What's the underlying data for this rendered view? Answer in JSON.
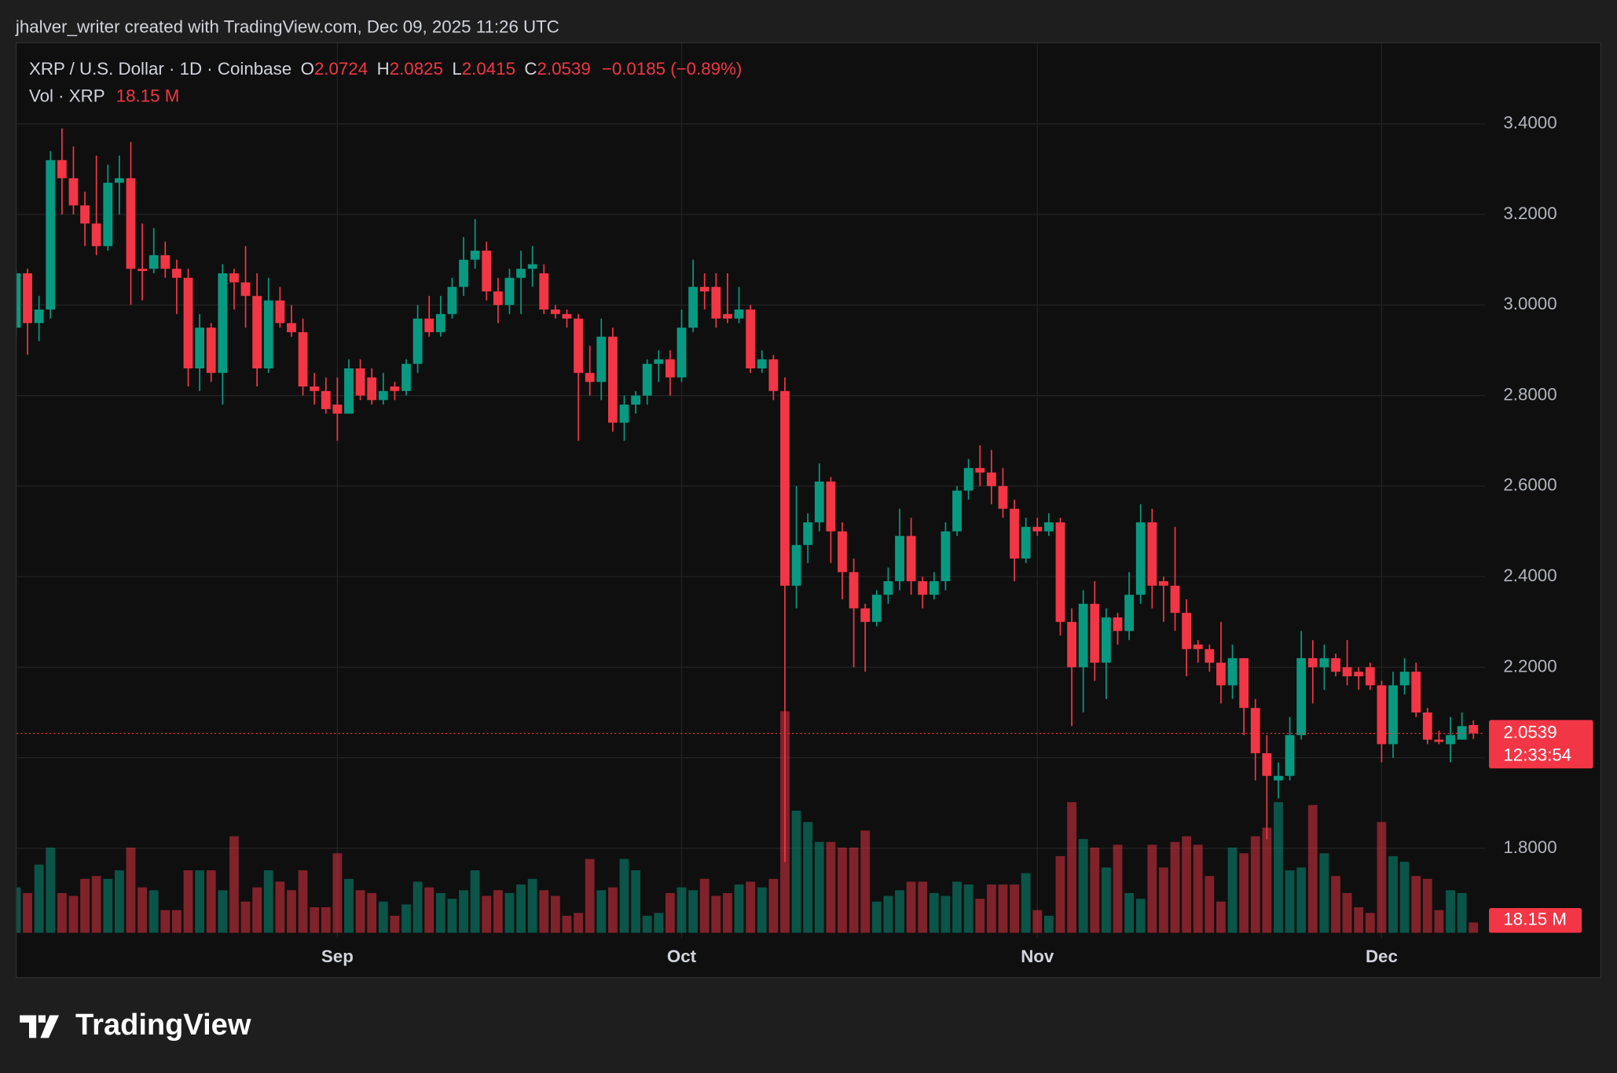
{
  "attribution": "jhalver_writer created with TradingView.com, Dec 09, 2025 11:26 UTC",
  "footer": {
    "logo": "TradingView"
  },
  "chart_data": {
    "type": "candlestick",
    "legend": {
      "symbol": "XRP / U.S. Dollar · 1D · Coinbase",
      "open_label": "O",
      "high_label": "H",
      "low_label": "L",
      "close_label": "C",
      "change": "−0.0185 (−0.89%)",
      "volume_name": "Vol · XRP"
    },
    "countdown": "12:33:54",
    "volume_last_label": "18.15 M",
    "up_color": "#089981",
    "down_color": "#f23645",
    "ylim": [
      1.602,
      3.578
    ],
    "yticks": [
      {
        "value": 1.8,
        "label": "1.8000"
      },
      {
        "value": 2.0,
        "label": "2.0000"
      },
      {
        "value": 2.2,
        "label": "2.2000"
      },
      {
        "value": 2.4,
        "label": "2.4000"
      },
      {
        "value": 2.6,
        "label": "2.6000"
      },
      {
        "value": 2.8,
        "label": "2.8000"
      },
      {
        "value": 3.0,
        "label": "3.0000"
      },
      {
        "value": 3.2,
        "label": "3.2000"
      },
      {
        "value": 3.4,
        "label": "3.4000"
      }
    ],
    "grid": true,
    "categories": [
      null,
      null,
      null,
      null,
      null,
      null,
      null,
      null,
      null,
      null,
      null,
      null,
      null,
      null,
      null,
      null,
      null,
      null,
      null,
      null,
      null,
      null,
      null,
      null,
      null,
      null,
      null,
      null,
      "Sep",
      null,
      null,
      null,
      null,
      null,
      null,
      null,
      null,
      null,
      null,
      null,
      null,
      null,
      null,
      null,
      null,
      null,
      null,
      null,
      null,
      null,
      null,
      null,
      null,
      null,
      null,
      null,
      null,
      null,
      "Oct",
      null,
      null,
      null,
      null,
      null,
      null,
      null,
      null,
      null,
      null,
      null,
      null,
      null,
      null,
      null,
      null,
      null,
      null,
      null,
      null,
      null,
      null,
      null,
      null,
      null,
      null,
      null,
      null,
      null,
      null,
      "Nov",
      null,
      null,
      null,
      null,
      null,
      null,
      null,
      null,
      null,
      null,
      null,
      null,
      null,
      null,
      null,
      null,
      null,
      null,
      null,
      null,
      null,
      null,
      null,
      null,
      null,
      null,
      null,
      null,
      null,
      "Dec",
      null,
      null,
      null,
      null,
      null,
      null,
      null,
      null
    ],
    "open": [
      2.95,
      3.07,
      2.96,
      2.99,
      3.32,
      3.28,
      3.22,
      3.18,
      3.13,
      3.27,
      3.28,
      3.08,
      3.08,
      3.11,
      3.08,
      3.06,
      2.86,
      2.95,
      2.85,
      3.07,
      3.05,
      3.02,
      2.86,
      3.01,
      2.96,
      2.94,
      2.82,
      2.81,
      2.78,
      2.76,
      2.86,
      2.84,
      2.79,
      2.82,
      2.81,
      2.87,
      2.97,
      2.94,
      2.98,
      3.04,
      3.1,
      3.12,
      3.03,
      3.0,
      3.06,
      3.08,
      3.07,
      2.99,
      2.98,
      2.97,
      2.85,
      2.83,
      2.93,
      2.74,
      2.78,
      2.8,
      2.87,
      2.88,
      2.84,
      2.95,
      3.04,
      3.04,
      2.98,
      2.97,
      2.99,
      2.86,
      2.88,
      2.81,
      2.38,
      2.47,
      2.52,
      2.61,
      2.5,
      2.41,
      2.33,
      2.3,
      2.36,
      2.39,
      2.49,
      2.39,
      2.36,
      2.39,
      2.5,
      2.59,
      2.64,
      2.63,
      2.6,
      2.55,
      2.44,
      2.51,
      2.5,
      2.52,
      2.3,
      2.2,
      2.34,
      2.21,
      2.31,
      2.28,
      2.36,
      2.52,
      2.39,
      2.38,
      2.32,
      2.25,
      2.24,
      2.21,
      2.16,
      2.22,
      2.11,
      2.01,
      1.95,
      1.96,
      2.05,
      2.22,
      2.2,
      2.22,
      2.2,
      2.19,
      2.2,
      2.16,
      2.03,
      2.16,
      2.19,
      2.1,
      2.04,
      2.03,
      2.04,
      2.0724
    ],
    "high": [
      3.08,
      3.08,
      3.02,
      3.34,
      3.39,
      3.35,
      3.25,
      3.33,
      3.31,
      3.33,
      3.36,
      3.18,
      3.17,
      3.14,
      3.1,
      3.08,
      2.98,
      2.96,
      3.09,
      3.08,
      3.13,
      3.07,
      3.06,
      3.04,
      3.0,
      2.97,
      2.85,
      2.84,
      2.84,
      2.88,
      2.88,
      2.86,
      2.85,
      2.83,
      2.88,
      3.0,
      3.02,
      3.02,
      3.06,
      3.15,
      3.19,
      3.14,
      3.06,
      3.08,
      3.12,
      3.13,
      3.09,
      3.0,
      2.99,
      2.98,
      2.91,
      2.97,
      2.95,
      2.8,
      2.81,
      2.88,
      2.9,
      2.9,
      2.99,
      3.1,
      3.07,
      3.07,
      3.07,
      3.04,
      3.0,
      2.9,
      2.89,
      2.84,
      2.6,
      2.54,
      2.65,
      2.62,
      2.52,
      2.44,
      2.34,
      2.37,
      2.42,
      2.55,
      2.53,
      2.4,
      2.41,
      2.52,
      2.6,
      2.66,
      2.69,
      2.68,
      2.64,
      2.57,
      2.53,
      2.53,
      2.54,
      2.53,
      2.33,
      2.37,
      2.39,
      2.33,
      2.32,
      2.41,
      2.56,
      2.55,
      2.4,
      2.51,
      2.35,
      2.26,
      2.25,
      2.3,
      2.25,
      2.22,
      2.13,
      2.05,
      1.99,
      2.09,
      2.28,
      2.26,
      2.25,
      2.23,
      2.26,
      2.2,
      2.21,
      2.17,
      2.19,
      2.22,
      2.21,
      2.11,
      2.06,
      2.09,
      2.1,
      2.0825
    ],
    "low": [
      2.93,
      2.89,
      2.92,
      2.97,
      3.2,
      3.2,
      3.13,
      3.11,
      3.12,
      3.2,
      3.0,
      3.01,
      3.07,
      3.06,
      2.98,
      2.82,
      2.81,
      2.83,
      2.78,
      2.99,
      2.95,
      2.82,
      2.85,
      2.95,
      2.93,
      2.8,
      2.78,
      2.76,
      2.7,
      2.76,
      2.79,
      2.78,
      2.78,
      2.79,
      2.8,
      2.85,
      2.93,
      2.93,
      2.97,
      3.02,
      3.08,
      3.01,
      2.96,
      2.98,
      2.98,
      3.04,
      2.98,
      2.97,
      2.95,
      2.7,
      2.8,
      2.79,
      2.72,
      2.7,
      2.76,
      2.78,
      2.83,
      2.8,
      2.83,
      2.94,
      2.99,
      2.95,
      2.96,
      2.96,
      2.85,
      2.85,
      2.79,
      1.77,
      2.33,
      2.43,
      2.5,
      2.43,
      2.35,
      2.2,
      2.19,
      2.29,
      2.34,
      2.37,
      2.36,
      2.33,
      2.35,
      2.37,
      2.49,
      2.57,
      2.6,
      2.56,
      2.53,
      2.39,
      2.43,
      2.49,
      2.49,
      2.27,
      2.07,
      2.1,
      2.17,
      2.13,
      2.25,
      2.26,
      2.34,
      2.33,
      2.3,
      2.28,
      2.18,
      2.21,
      2.19,
      2.12,
      2.13,
      2.05,
      1.95,
      1.82,
      1.91,
      1.95,
      2.04,
      2.12,
      2.15,
      2.18,
      2.16,
      2.15,
      2.15,
      1.99,
      2.0,
      2.14,
      2.09,
      2.03,
      2.03,
      1.99,
      2.04,
      2.0415
    ],
    "close": [
      3.07,
      2.96,
      2.99,
      3.32,
      3.28,
      3.22,
      3.18,
      3.13,
      3.27,
      3.28,
      3.08,
      3.075,
      3.11,
      3.08,
      3.06,
      2.86,
      2.95,
      2.85,
      3.07,
      3.05,
      3.02,
      2.86,
      3.01,
      2.96,
      2.94,
      2.82,
      2.81,
      2.77,
      2.76,
      2.86,
      2.8,
      2.79,
      2.81,
      2.81,
      2.87,
      2.97,
      2.94,
      2.98,
      3.04,
      3.1,
      3.12,
      3.03,
      3.0,
      3.06,
      3.08,
      3.09,
      2.99,
      2.98,
      2.97,
      2.85,
      2.83,
      2.93,
      2.74,
      2.78,
      2.8,
      2.87,
      2.88,
      2.84,
      2.95,
      3.04,
      3.03,
      2.97,
      2.97,
      2.99,
      2.86,
      2.88,
      2.81,
      2.38,
      2.47,
      2.52,
      2.61,
      2.5,
      2.41,
      2.33,
      2.3,
      2.36,
      2.39,
      2.49,
      2.39,
      2.36,
      2.39,
      2.5,
      2.59,
      2.64,
      2.63,
      2.6,
      2.55,
      2.44,
      2.51,
      2.5,
      2.52,
      2.3,
      2.2,
      2.34,
      2.21,
      2.31,
      2.28,
      2.36,
      2.52,
      2.38,
      2.38,
      2.32,
      2.24,
      2.24,
      2.21,
      2.16,
      2.22,
      2.11,
      2.01,
      1.96,
      1.96,
      2.05,
      2.22,
      2.2,
      2.22,
      2.19,
      2.18,
      2.18,
      2.16,
      2.03,
      2.16,
      2.19,
      2.1,
      2.04,
      2.035,
      2.05,
      2.07,
      2.0539
    ],
    "volume": [
      80,
      70,
      120,
      150,
      70,
      65,
      95,
      100,
      95,
      110,
      150,
      80,
      75,
      40,
      40,
      110,
      110,
      110,
      75,
      170,
      55,
      80,
      110,
      90,
      75,
      110,
      45,
      45,
      140,
      95,
      75,
      70,
      55,
      30,
      50,
      90,
      80,
      70,
      60,
      75,
      110,
      65,
      75,
      70,
      85,
      95,
      75,
      65,
      30,
      35,
      130,
      75,
      80,
      130,
      110,
      30,
      35,
      70,
      80,
      75,
      95,
      65,
      70,
      85,
      90,
      80,
      95,
      390,
      215,
      195,
      160,
      160,
      150,
      150,
      180,
      55,
      65,
      75,
      90,
      90,
      70,
      65,
      90,
      85,
      60,
      85,
      85,
      85,
      105,
      40,
      30,
      135,
      230,
      165,
      150,
      115,
      155,
      70,
      60,
      155,
      115,
      160,
      170,
      155,
      100,
      55,
      150,
      140,
      170,
      185,
      230,
      110,
      115,
      225,
      140,
      100,
      70,
      45,
      35,
      195,
      135,
      125,
      100,
      95,
      40,
      75,
      70,
      18.15
    ]
  }
}
